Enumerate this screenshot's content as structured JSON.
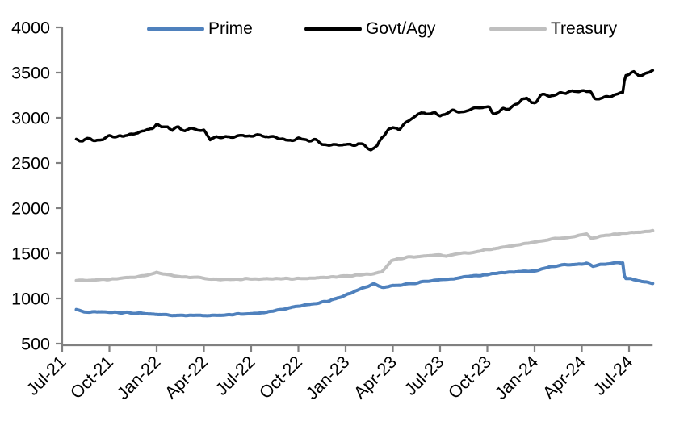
{
  "chart_data": {
    "type": "line",
    "title": "",
    "x_axis": {
      "tick_labels": [
        "Jul-21",
        "Oct-21",
        "Jan-22",
        "Apr-22",
        "Jul-22",
        "Oct-22",
        "Jan-23",
        "Apr-23",
        "Jul-23",
        "Oct-23",
        "Jan-24",
        "Apr-24",
        "Jul-24"
      ],
      "tick_months": [
        0,
        3,
        6,
        9,
        12,
        15,
        18,
        21,
        24,
        27,
        30,
        33,
        36
      ],
      "domain_months": [
        0,
        37.5
      ],
      "label_rotation_deg": -45,
      "grid": false
    },
    "y_axis": {
      "min": 500,
      "max": 4000,
      "step": 500,
      "tick_labels": [
        "500",
        "1000",
        "1500",
        "2000",
        "2500",
        "3000",
        "3500",
        "4000"
      ],
      "grid": false
    },
    "legend": {
      "position": "top",
      "entries": [
        {
          "label": "Prime",
          "color": "#4f81bd"
        },
        {
          "label": "Govt/Agy",
          "color": "#000000"
        },
        {
          "label": "Treasury",
          "color": "#bfbfbf"
        }
      ]
    },
    "axis_color": "#808080",
    "text_color": "#000000",
    "series": [
      {
        "name": "Prime",
        "color": "#4f81bd",
        "line_width": 4,
        "jitter": 5,
        "points": [
          [
            0.9,
            878
          ],
          [
            1.4,
            852
          ],
          [
            2.2,
            850
          ],
          [
            3,
            848
          ],
          [
            4,
            843
          ],
          [
            5,
            838
          ],
          [
            6,
            824
          ],
          [
            6.5,
            816
          ],
          [
            7,
            812
          ],
          [
            8,
            812
          ],
          [
            9,
            810
          ],
          [
            9.5,
            814
          ],
          [
            10,
            818
          ],
          [
            11,
            822
          ],
          [
            12,
            831
          ],
          [
            13,
            852
          ],
          [
            14,
            882
          ],
          [
            15,
            916
          ],
          [
            16,
            946
          ],
          [
            17,
            976
          ],
          [
            18,
            1030
          ],
          [
            18.6,
            1082
          ],
          [
            19,
            1108
          ],
          [
            19.8,
            1158
          ],
          [
            20.4,
            1120
          ],
          [
            21,
            1140
          ],
          [
            22,
            1160
          ],
          [
            23,
            1186
          ],
          [
            24,
            1206
          ],
          [
            25,
            1228
          ],
          [
            26,
            1248
          ],
          [
            27,
            1262
          ],
          [
            28,
            1285
          ],
          [
            29,
            1298
          ],
          [
            30,
            1306
          ],
          [
            30.6,
            1330
          ],
          [
            31,
            1352
          ],
          [
            32,
            1370
          ],
          [
            33,
            1382
          ],
          [
            33.3,
            1392
          ],
          [
            33.7,
            1352
          ],
          [
            34.2,
            1375
          ],
          [
            34.8,
            1382
          ],
          [
            35.3,
            1396
          ],
          [
            35.6,
            1390
          ],
          [
            35.72,
            1215
          ],
          [
            36.1,
            1218
          ],
          [
            36.5,
            1200
          ],
          [
            37,
            1186
          ],
          [
            37.5,
            1172
          ]
        ]
      },
      {
        "name": "Govt/Agy",
        "color": "#000000",
        "line_width": 3.5,
        "jitter": 13,
        "points": [
          [
            0.9,
            2752
          ],
          [
            1.3,
            2740
          ],
          [
            1.8,
            2768
          ],
          [
            2.3,
            2752
          ],
          [
            3,
            2790
          ],
          [
            3.5,
            2778
          ],
          [
            4,
            2815
          ],
          [
            4.5,
            2800
          ],
          [
            5,
            2848
          ],
          [
            5.5,
            2858
          ],
          [
            6,
            2928
          ],
          [
            6.3,
            2888
          ],
          [
            6.7,
            2905
          ],
          [
            7,
            2862
          ],
          [
            7.4,
            2890
          ],
          [
            7.8,
            2858
          ],
          [
            8.2,
            2880
          ],
          [
            8.6,
            2852
          ],
          [
            9,
            2872
          ],
          [
            9.4,
            2762
          ],
          [
            9.8,
            2800
          ],
          [
            10.2,
            2778
          ],
          [
            10.6,
            2802
          ],
          [
            11,
            2790
          ],
          [
            11.5,
            2805
          ],
          [
            12,
            2798
          ],
          [
            12.5,
            2788
          ],
          [
            13,
            2792
          ],
          [
            13.5,
            2778
          ],
          [
            14,
            2772
          ],
          [
            14.5,
            2760
          ],
          [
            15,
            2762
          ],
          [
            15.5,
            2745
          ],
          [
            16,
            2740
          ],
          [
            16.5,
            2722
          ],
          [
            17,
            2718
          ],
          [
            17.5,
            2710
          ],
          [
            18,
            2716
          ],
          [
            18.4,
            2700
          ],
          [
            18.8,
            2712
          ],
          [
            19.2,
            2692
          ],
          [
            19.6,
            2655
          ],
          [
            20,
            2700
          ],
          [
            20.3,
            2788
          ],
          [
            20.7,
            2860
          ],
          [
            21,
            2900
          ],
          [
            21.4,
            2880
          ],
          [
            21.8,
            2952
          ],
          [
            22.2,
            3010
          ],
          [
            22.6,
            3042
          ],
          [
            23,
            3060
          ],
          [
            23.4,
            3040
          ],
          [
            23.7,
            3052
          ],
          [
            24,
            3032
          ],
          [
            24.4,
            3060
          ],
          [
            24.8,
            3078
          ],
          [
            25.2,
            3062
          ],
          [
            25.6,
            3075
          ],
          [
            26,
            3092
          ],
          [
            26.4,
            3110
          ],
          [
            26.8,
            3128
          ],
          [
            27.1,
            3122
          ],
          [
            27.35,
            3035
          ],
          [
            27.7,
            3062
          ],
          [
            28,
            3108
          ],
          [
            28.4,
            3092
          ],
          [
            28.8,
            3148
          ],
          [
            29.2,
            3192
          ],
          [
            29.5,
            3218
          ],
          [
            29.8,
            3155
          ],
          [
            30.1,
            3175
          ],
          [
            30.4,
            3242
          ],
          [
            30.8,
            3252
          ],
          [
            31.2,
            3248
          ],
          [
            31.6,
            3262
          ],
          [
            32,
            3255
          ],
          [
            32.4,
            3298
          ],
          [
            32.8,
            3288
          ],
          [
            33.2,
            3308
          ],
          [
            33.5,
            3295
          ],
          [
            33.8,
            3212
          ],
          [
            34.2,
            3225
          ],
          [
            34.6,
            3240
          ],
          [
            35,
            3242
          ],
          [
            35.3,
            3255
          ],
          [
            35.6,
            3262
          ],
          [
            35.75,
            3468
          ],
          [
            36,
            3482
          ],
          [
            36.3,
            3498
          ],
          [
            36.6,
            3472
          ],
          [
            36.9,
            3478
          ],
          [
            37.2,
            3498
          ],
          [
            37.5,
            3518
          ]
        ]
      },
      {
        "name": "Treasury",
        "color": "#bfbfbf",
        "line_width": 4,
        "jitter": 5,
        "points": [
          [
            0.9,
            1205
          ],
          [
            1.5,
            1200
          ],
          [
            2.2,
            1205
          ],
          [
            3,
            1214
          ],
          [
            4,
            1226
          ],
          [
            5,
            1246
          ],
          [
            5.5,
            1262
          ],
          [
            6,
            1292
          ],
          [
            6.4,
            1272
          ],
          [
            7,
            1255
          ],
          [
            8,
            1235
          ],
          [
            9,
            1222
          ],
          [
            10,
            1211
          ],
          [
            11,
            1213
          ],
          [
            12,
            1218
          ],
          [
            13,
            1222
          ],
          [
            14,
            1218
          ],
          [
            15,
            1222
          ],
          [
            16,
            1228
          ],
          [
            17,
            1236
          ],
          [
            18,
            1248
          ],
          [
            19,
            1262
          ],
          [
            19.8,
            1272
          ],
          [
            20.3,
            1288
          ],
          [
            20.9,
            1418
          ],
          [
            21.3,
            1442
          ],
          [
            22,
            1456
          ],
          [
            23,
            1472
          ],
          [
            24,
            1478
          ],
          [
            24.4,
            1466
          ],
          [
            25,
            1490
          ],
          [
            26,
            1512
          ],
          [
            27,
            1540
          ],
          [
            28,
            1568
          ],
          [
            29,
            1596
          ],
          [
            30,
            1626
          ],
          [
            31,
            1655
          ],
          [
            32,
            1678
          ],
          [
            33,
            1700
          ],
          [
            33.3,
            1712
          ],
          [
            33.6,
            1664
          ],
          [
            34.2,
            1684
          ],
          [
            35,
            1706
          ],
          [
            36,
            1724
          ],
          [
            36.8,
            1738
          ],
          [
            37.5,
            1750
          ]
        ]
      }
    ]
  }
}
